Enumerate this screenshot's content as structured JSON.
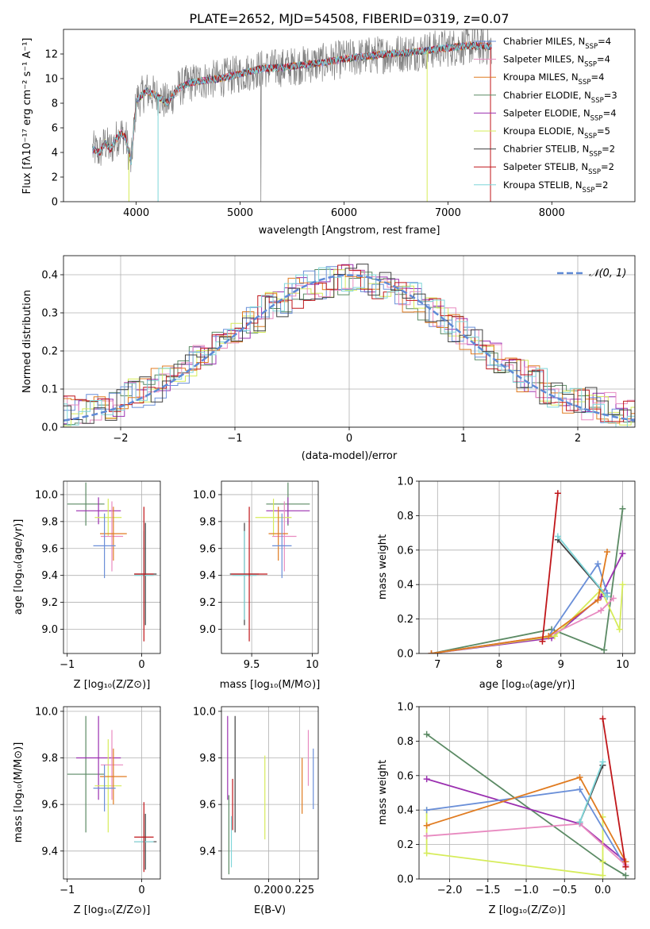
{
  "title": "PLATE=2652, MJD=54508, FIBERID=0319, z=0.07",
  "colors": {
    "Chabrier MILES": "#6a8fd8",
    "Salpeter MILES": "#e88ac0",
    "Kroupa MILES": "#e07b20",
    "Chabrier ELODIE": "#5b8a64",
    "Salpeter ELODIE": "#9b30b0",
    "Kroupa ELODIE": "#d6ec5a",
    "Chabrier STELIB": "#404040",
    "Salpeter STELIB": "#c0161a",
    "Kroupa STELIB": "#7fd6d9",
    "data": "#7f7f7f",
    "gaussian": "#5f8ad6"
  },
  "legend_spectrum": [
    {
      "name": "Chabrier MILES",
      "label": "Chabrier MILES, N",
      "sub": "SSP",
      "suf": "=4"
    },
    {
      "name": "Salpeter MILES",
      "label": "Salpeter MILES, N",
      "sub": "SSP",
      "suf": "=4"
    },
    {
      "name": "Kroupa MILES",
      "label": "Kroupa MILES, N",
      "sub": "SSP",
      "suf": "=4"
    },
    {
      "name": "Chabrier ELODIE",
      "label": "Chabrier ELODIE, N",
      "sub": "SSP",
      "suf": "=3"
    },
    {
      "name": "Salpeter ELODIE",
      "label": "Salpeter ELODIE, N",
      "sub": "SSP",
      "suf": "=4"
    },
    {
      "name": "Kroupa ELODIE",
      "label": "Kroupa ELODIE, N",
      "sub": "SSP",
      "suf": "=5"
    },
    {
      "name": "Chabrier STELIB",
      "label": "Chabrier STELIB, N",
      "sub": "SSP",
      "suf": "=2"
    },
    {
      "name": "Salpeter STELIB",
      "label": "Salpeter STELIB, N",
      "sub": "SSP",
      "suf": "=2"
    },
    {
      "name": "Kroupa STELIB",
      "label": "Kroupa STELIB, N",
      "sub": "SSP",
      "suf": "=2"
    }
  ],
  "chart_data": [
    {
      "id": "spectrum",
      "type": "line",
      "title": "PLATE=2652, MJD=54508, FIBERID=0319, z=0.07",
      "xlabel": "wavelength [Angstrom, rest frame]",
      "ylabel": "Flux [f_λ 10^-17 erg cm^-2 s^-1 A^-1]",
      "xlim": [
        3300,
        8800
      ],
      "ylim": [
        0,
        14
      ],
      "xticks": [
        4000,
        5000,
        6000,
        7000,
        8000
      ],
      "yticks": [
        0,
        2,
        4,
        6,
        8,
        10,
        12
      ],
      "model_trend": {
        "x": [
          3600,
          3650,
          3700,
          3750,
          3800,
          3850,
          3900,
          3950,
          4000,
          4100,
          4200,
          4300,
          4400,
          4500,
          4600,
          4800,
          5000,
          5200,
          5400,
          5600,
          5800,
          6000,
          6200,
          6400,
          6600,
          6800,
          7000,
          7200,
          7400
        ],
        "y": [
          4.2,
          4.0,
          4.8,
          4.2,
          5.0,
          5.6,
          5.2,
          3.0,
          8.2,
          9.0,
          8.6,
          8.0,
          9.2,
          9.6,
          9.8,
          10.0,
          10.4,
          10.8,
          10.9,
          11.1,
          11.3,
          11.6,
          11.8,
          12.0,
          12.1,
          12.3,
          12.5,
          12.7,
          12.6
        ]
      },
      "notes": "observed spectrum (grey) overplotted by nine SSP model fits; one data point dips to 0 near 5200 A"
    },
    {
      "id": "residual_hist",
      "type": "bar",
      "xlabel": "(data-model)/error",
      "ylabel": "Normed distribution",
      "xlim": [
        -2.5,
        2.5
      ],
      "ylim": [
        0,
        0.45
      ],
      "xticks": [
        -2,
        -1,
        0,
        1,
        2
      ],
      "yticks": [
        0.0,
        0.1,
        0.2,
        0.3,
        0.4
      ],
      "bin_width": 0.1,
      "reference": {
        "name": "N(0,1)",
        "mu": 0,
        "sigma": 1
      },
      "legend": "N(0, 1)"
    },
    {
      "id": "age_vs_Z",
      "type": "scatter",
      "xlabel": "Z [log10(Z/Z⊙)]",
      "ylabel": "age [log10(age/yr)]",
      "xlim": [
        -1.05,
        0.25
      ],
      "ylim": [
        8.82,
        10.1
      ],
      "xticks": [
        -1,
        0
      ],
      "yticks": [
        9.0,
        9.2,
        9.4,
        9.6,
        9.8,
        10.0
      ],
      "points": [
        {
          "s": "Chabrier ELODIE",
          "x": -0.75,
          "y": 9.93,
          "xe": 0.25,
          "ye": 0.16
        },
        {
          "s": "Salpeter ELODIE",
          "x": -0.58,
          "y": 9.88,
          "xe": 0.3,
          "ye": 0.1
        },
        {
          "s": "Kroupa ELODIE",
          "x": -0.45,
          "y": 9.83,
          "xe": 0.18,
          "ye": 0.14
        },
        {
          "s": "Salpeter MILES",
          "x": -0.4,
          "y": 9.69,
          "xe": 0.15,
          "ye": 0.26
        },
        {
          "s": "Kroupa MILES",
          "x": -0.38,
          "y": 9.71,
          "xe": 0.18,
          "ye": 0.2
        },
        {
          "s": "Chabrier MILES",
          "x": -0.5,
          "y": 9.62,
          "xe": 0.15,
          "ye": 0.24
        },
        {
          "s": "Chabrier STELIB",
          "x": 0.05,
          "y": 9.41,
          "xe": 0.15,
          "ye": 0.38
        },
        {
          "s": "Kroupa STELIB",
          "x": 0.03,
          "y": 9.4,
          "xe": 0.13,
          "ye": 0.33
        },
        {
          "s": "Salpeter STELIB",
          "x": 0.03,
          "y": 9.41,
          "xe": 0.13,
          "ye": 0.5
        }
      ]
    },
    {
      "id": "age_vs_mass",
      "type": "scatter",
      "xlabel": "mass [log10(M/M⊙)]",
      "ylabel": "",
      "xlim": [
        9.25,
        10.05
      ],
      "ylim": [
        8.82,
        10.1
      ],
      "xticks": [
        9.5,
        10.0
      ],
      "yticks": [
        9.0,
        9.2,
        9.4,
        9.6,
        9.8,
        10.0
      ],
      "points": [
        {
          "s": "Chabrier ELODIE",
          "x": 9.8,
          "y": 9.93,
          "xe": 0.18,
          "ye": 0.16
        },
        {
          "s": "Salpeter ELODIE",
          "x": 9.8,
          "y": 9.88,
          "xe": 0.18,
          "ye": 0.1
        },
        {
          "s": "Kroupa ELODIE",
          "x": 9.68,
          "y": 9.83,
          "xe": 0.15,
          "ye": 0.14
        },
        {
          "s": "Salpeter MILES",
          "x": 9.77,
          "y": 9.69,
          "xe": 0.1,
          "ye": 0.26
        },
        {
          "s": "Kroupa MILES",
          "x": 9.72,
          "y": 9.71,
          "xe": 0.08,
          "ye": 0.2
        },
        {
          "s": "Chabrier MILES",
          "x": 9.75,
          "y": 9.62,
          "xe": 0.08,
          "ye": 0.24
        },
        {
          "s": "Chabrier STELIB",
          "x": 9.44,
          "y": 9.41,
          "xe": 0.12,
          "ye": 0.38
        },
        {
          "s": "Kroupa STELIB",
          "x": 9.44,
          "y": 9.4,
          "xe": 0.1,
          "ye": 0.33
        },
        {
          "s": "Salpeter STELIB",
          "x": 9.48,
          "y": 9.41,
          "xe": 0.15,
          "ye": 0.5
        }
      ]
    },
    {
      "id": "weight_vs_age",
      "type": "line",
      "xlabel": "age [log10(age/yr)]",
      "ylabel": "mass weight",
      "xlim": [
        6.7,
        10.2
      ],
      "ylim": [
        0,
        1.0
      ],
      "xticks": [
        7,
        8,
        9,
        10
      ],
      "yticks": [
        0.0,
        0.2,
        0.4,
        0.6,
        0.8,
        1.0
      ],
      "series": [
        {
          "name": "Chabrier ELODIE",
          "x": [
            6.9,
            8.85,
            9.7,
            10.0
          ],
          "y": [
            0.0,
            0.14,
            0.02,
            0.84
          ]
        },
        {
          "name": "Salpeter ELODIE",
          "x": [
            6.9,
            8.85,
            9.65,
            10.0
          ],
          "y": [
            0.0,
            0.09,
            0.33,
            0.58
          ]
        },
        {
          "name": "Kroupa ELODIE",
          "x": [
            6.9,
            8.9,
            9.65,
            9.95,
            10.0
          ],
          "y": [
            0.0,
            0.1,
            0.37,
            0.14,
            0.4
          ]
        },
        {
          "name": "Chabrier MILES",
          "x": [
            6.9,
            8.8,
            9.6,
            9.75
          ],
          "y": [
            0.0,
            0.1,
            0.52,
            0.35
          ]
        },
        {
          "name": "Salpeter MILES",
          "x": [
            6.9,
            8.8,
            9.65,
            9.85
          ],
          "y": [
            0.0,
            0.1,
            0.25,
            0.32
          ]
        },
        {
          "name": "Kroupa MILES",
          "x": [
            6.9,
            8.8,
            9.6,
            9.75
          ],
          "y": [
            0.0,
            0.1,
            0.31,
            0.59
          ]
        },
        {
          "name": "Chabrier STELIB",
          "x": [
            8.95,
            9.75
          ],
          "y": [
            0.66,
            0.33
          ]
        },
        {
          "name": "Kroupa STELIB",
          "x": [
            8.95,
            9.75
          ],
          "y": [
            0.68,
            0.33
          ]
        },
        {
          "name": "Salpeter STELIB",
          "x": [
            8.7,
            8.95
          ],
          "y": [
            0.07,
            0.93
          ]
        }
      ]
    },
    {
      "id": "mass_vs_Z",
      "type": "scatter",
      "xlabel": "Z [log10(Z/Z⊙)]",
      "ylabel": "mass [log10(M/M⊙)]",
      "xlim": [
        -1.05,
        0.25
      ],
      "ylim": [
        9.28,
        10.02
      ],
      "xticks": [
        -1,
        0
      ],
      "yticks": [
        9.4,
        9.6,
        9.8,
        10.0
      ],
      "points": [
        {
          "s": "Chabrier ELODIE",
          "x": -0.75,
          "y": 9.73,
          "xe": 0.25,
          "ye": 0.25
        },
        {
          "s": "Salpeter ELODIE",
          "x": -0.58,
          "y": 9.8,
          "xe": 0.3,
          "ye": 0.18
        },
        {
          "s": "Kroupa ELODIE",
          "x": -0.45,
          "y": 9.68,
          "xe": 0.18,
          "ye": 0.2
        },
        {
          "s": "Salpeter MILES",
          "x": -0.4,
          "y": 9.77,
          "xe": 0.15,
          "ye": 0.15
        },
        {
          "s": "Kroupa MILES",
          "x": -0.38,
          "y": 9.72,
          "xe": 0.18,
          "ye": 0.12
        },
        {
          "s": "Chabrier MILES",
          "x": -0.5,
          "y": 9.67,
          "xe": 0.15,
          "ye": 0.1
        },
        {
          "s": "Chabrier STELIB",
          "x": 0.05,
          "y": 9.44,
          "xe": 0.15,
          "ye": 0.12
        },
        {
          "s": "Kroupa STELIB",
          "x": 0.03,
          "y": 9.44,
          "xe": 0.13,
          "ye": 0.12
        },
        {
          "s": "Salpeter STELIB",
          "x": 0.03,
          "y": 9.46,
          "xe": 0.13,
          "ye": 0.15
        }
      ]
    },
    {
      "id": "mass_vs_EBV",
      "type": "scatter",
      "xlabel": "E(B-V)",
      "ylabel": "",
      "xlim": [
        0.162,
        0.24
      ],
      "ylim": [
        9.28,
        10.02
      ],
      "xticks": [
        0.2,
        0.225
      ],
      "xtick_labels": [
        "0.200",
        "0.225"
      ],
      "yticks": [
        9.4,
        9.6,
        9.8,
        10.0
      ],
      "points": [
        {
          "s": "Salpeter ELODIE",
          "x": 0.167,
          "y": 9.8,
          "xe": 0,
          "ye": 0.18
        },
        {
          "s": "Chabrier ELODIE",
          "x": 0.168,
          "y": 9.47,
          "xe": 0,
          "ye": 0.17
        },
        {
          "s": "Kroupa STELIB",
          "x": 0.17,
          "y": 9.44,
          "xe": 0,
          "ye": 0.11
        },
        {
          "s": "Salpeter STELIB",
          "x": 0.171,
          "y": 9.6,
          "xe": 0,
          "ye": 0.11
        },
        {
          "s": "Chabrier STELIB",
          "x": 0.173,
          "y": 9.73,
          "xe": 0,
          "ye": 0.25
        },
        {
          "s": "Kroupa ELODIE",
          "x": 0.197,
          "y": 9.63,
          "xe": 0,
          "ye": 0.18
        },
        {
          "s": "Kroupa MILES",
          "x": 0.227,
          "y": 9.68,
          "xe": 0,
          "ye": 0.12
        },
        {
          "s": "Salpeter MILES",
          "x": 0.232,
          "y": 9.8,
          "xe": 0,
          "ye": 0.12
        },
        {
          "s": "Chabrier MILES",
          "x": 0.236,
          "y": 9.71,
          "xe": 0,
          "ye": 0.13
        }
      ]
    },
    {
      "id": "weight_vs_Z",
      "type": "line",
      "xlabel": "Z [log10(Z/Z⊙)]",
      "ylabel": "mass weight",
      "xlim": [
        -2.4,
        0.42
      ],
      "ylim": [
        0,
        1.0
      ],
      "xticks": [
        -2.0,
        -1.5,
        -1.0,
        -0.5,
        0.0
      ],
      "yticks": [
        0.0,
        0.2,
        0.4,
        0.6,
        0.8,
        1.0
      ],
      "series": [
        {
          "name": "Chabrier ELODIE",
          "x": [
            -2.3,
            0.0,
            0.3
          ],
          "y": [
            0.84,
            0.1,
            0.02
          ]
        },
        {
          "name": "Salpeter ELODIE",
          "x": [
            -2.3,
            -0.3,
            0.3
          ],
          "y": [
            0.58,
            0.32,
            0.1
          ]
        },
        {
          "name": "Kroupa ELODIE",
          "x": [
            -2.3,
            -2.3,
            0.0,
            0.0,
            0.0
          ],
          "y": [
            0.4,
            0.15,
            0.02,
            0.36,
            0.1
          ]
        },
        {
          "name": "Chabrier MILES",
          "x": [
            -2.3,
            -0.3,
            0.3
          ],
          "y": [
            0.4,
            0.52,
            0.07
          ]
        },
        {
          "name": "Salpeter MILES",
          "x": [
            -2.3,
            -0.3,
            0.3
          ],
          "y": [
            0.25,
            0.32,
            0.08
          ]
        },
        {
          "name": "Kroupa MILES",
          "x": [
            -2.3,
            -0.3,
            0.3
          ],
          "y": [
            0.31,
            0.59,
            0.1
          ]
        },
        {
          "name": "Chabrier STELIB",
          "x": [
            0.0,
            -0.3
          ],
          "y": [
            0.66,
            0.33
          ]
        },
        {
          "name": "Kroupa STELIB",
          "x": [
            0.0,
            -0.3
          ],
          "y": [
            0.68,
            0.33
          ]
        },
        {
          "name": "Salpeter STELIB",
          "x": [
            0.0,
            0.3
          ],
          "y": [
            0.93,
            0.07
          ]
        }
      ]
    }
  ]
}
